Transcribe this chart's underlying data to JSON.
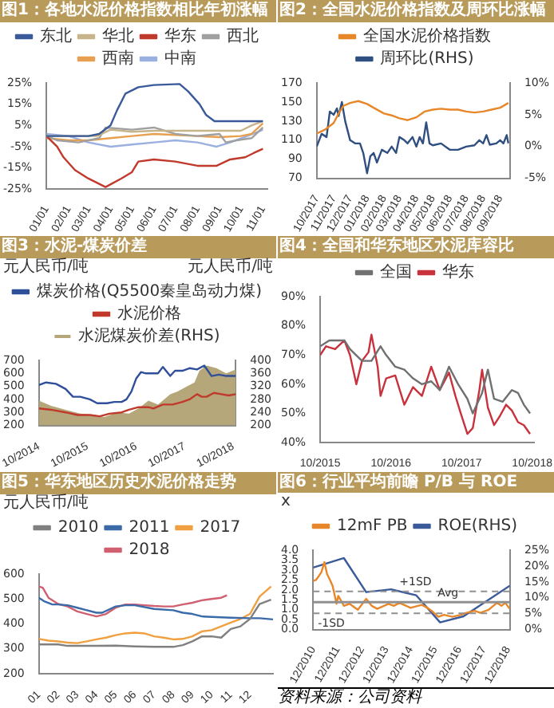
{
  "chart_data": [
    {
      "type": "line",
      "title": "图1：各地水泥价格指数相比年初涨幅",
      "legend": "top",
      "xlim": [
        "--01-01",
        "--11-07"
      ],
      "xticks": [
        {
          "value": "--01-01",
          "label": "01/01"
        },
        {
          "value": "--02-01",
          "label": "02/01"
        },
        {
          "value": "--03-01",
          "label": "03/01"
        },
        {
          "value": "--04-01",
          "label": "04/01"
        },
        {
          "value": "--05-01",
          "label": "05/01"
        },
        {
          "value": "--06-01",
          "label": "06/01"
        },
        {
          "value": "--07-01",
          "label": "07/01"
        },
        {
          "value": "--08-01",
          "label": "08/01"
        },
        {
          "value": "--09-01",
          "label": "09/01"
        },
        {
          "value": "--10-01",
          "label": "10/01"
        },
        {
          "value": "--11-01",
          "label": "11/01"
        }
      ],
      "ylim": [
        -25,
        25
      ],
      "yticks": [
        {
          "value": -25,
          "label": "-25%"
        },
        {
          "value": -15,
          "label": "-15%"
        },
        {
          "value": -5,
          "label": "-5%"
        },
        {
          "value": 5,
          "label": "5%"
        },
        {
          "value": 15,
          "label": "15%"
        },
        {
          "value": 25,
          "label": "25%"
        }
      ],
      "series": [
        {
          "name": "东北",
          "color": "#3a5a9a",
          "x": [
            "--01-01",
            "--02-01",
            "--03-01",
            "--03-16",
            "--04-01",
            "--04-10",
            "--04-22",
            "--05-10",
            "--06-01",
            "--07-07",
            "--07-19",
            "--08-04",
            "--08-13",
            "--08-25",
            "--11-01"
          ],
          "values": [
            0,
            0,
            0,
            1,
            5,
            12,
            20,
            23,
            24,
            24.5,
            21,
            15,
            10,
            7,
            7
          ]
        },
        {
          "name": "华北",
          "color": "#c8b48a",
          "x": [
            "--01-01",
            "--02-01",
            "--03-01",
            "--03-13",
            "--04-01",
            "--05-01",
            "--06-01",
            "--07-01",
            "--08-01",
            "--09-01",
            "--10-01",
            "--10-16",
            "--11-01"
          ],
          "values": [
            0,
            0,
            0,
            0,
            3,
            2,
            2.5,
            2.5,
            2.5,
            2.5,
            2.5,
            5,
            7
          ]
        },
        {
          "name": "华东",
          "color": "#c0392b",
          "x": [
            "--01-01",
            "--01-16",
            "--01-25",
            "--02-10",
            "--03-01",
            "--03-25",
            "--04-16",
            "--05-01",
            "--05-10",
            "--06-01",
            "--07-01",
            "--08-01",
            "--08-28",
            "--09-16",
            "--10-07",
            "--10-19",
            "--11-01"
          ],
          "values": [
            0,
            -5,
            -10,
            -16,
            -20,
            -24,
            -20,
            -17,
            -12,
            -11,
            -12,
            -14,
            -14,
            -11,
            -10,
            -8,
            -6
          ]
        },
        {
          "name": "西北",
          "color": "#a0a0a0",
          "x": [
            "--01-01",
            "--01-16",
            "--02-15",
            "--03-16",
            "--03-25",
            "--05-01",
            "--06-01",
            "--07-01",
            "--08-01",
            "--09-01",
            "--09-10",
            "--09-25",
            "--10-16",
            "--11-01"
          ],
          "values": [
            0,
            -2,
            -3,
            -1,
            4,
            3,
            4,
            1,
            0,
            1,
            -3,
            -2,
            -1,
            4
          ]
        },
        {
          "name": "西南",
          "color": "#e8a050",
          "x": [
            "--01-01",
            "--02-01",
            "--03-01",
            "--04-01",
            "--05-01",
            "--06-01",
            "--07-01",
            "--08-01",
            "--09-01",
            "--10-01",
            "--10-16",
            "--11-01"
          ],
          "values": [
            -1,
            -2,
            -2,
            -1,
            0,
            1,
            0.5,
            0,
            -0.5,
            0,
            1,
            6
          ]
        },
        {
          "name": "中南",
          "color": "#9ab0e0",
          "x": [
            "--01-01",
            "--02-01",
            "--03-01",
            "--04-01",
            "--05-01",
            "--06-01",
            "--07-01",
            "--08-01",
            "--08-28",
            "--09-16",
            "--10-10",
            "--10-25",
            "--11-01"
          ],
          "values": [
            1,
            0,
            -3,
            -5,
            -4,
            -3,
            -2,
            -3,
            -5,
            -3,
            0,
            2,
            3
          ]
        }
      ]
    },
    {
      "type": "line",
      "title": "图2：全国水泥价格指数及周环比涨幅",
      "legend": "top",
      "xlim": [
        "2017-10-01",
        "2018-09-19"
      ],
      "xticks": [
        {
          "value": "2017-10-01",
          "label": "10/2017"
        },
        {
          "value": "2017-11-01",
          "label": "11/2017"
        },
        {
          "value": "2017-12-01",
          "label": "12/2017"
        },
        {
          "value": "2018-01-01",
          "label": "01/2018"
        },
        {
          "value": "2018-02-01",
          "label": "02/2018"
        },
        {
          "value": "2018-03-01",
          "label": "03/2018"
        },
        {
          "value": "2018-04-01",
          "label": "04/2018"
        },
        {
          "value": "2018-05-01",
          "label": "05/2018"
        },
        {
          "value": "2018-06-01",
          "label": "06/2018"
        },
        {
          "value": "2018-07-01",
          "label": "07/2018"
        },
        {
          "value": "2018-08-01",
          "label": "08/2018"
        },
        {
          "value": "2018-09-01",
          "label": "09/2018"
        }
      ],
      "ylim": [
        70,
        170
      ],
      "yticks": [
        70,
        90,
        110,
        130,
        150,
        170
      ],
      "y2lim": [
        -5,
        10
      ],
      "y2ticks": [
        {
          "value": -5,
          "label": "-5%"
        },
        {
          "value": 0,
          "label": "0%"
        },
        {
          "value": 5,
          "label": "5%"
        },
        {
          "value": 10,
          "label": "10%"
        }
      ],
      "series": [
        {
          "name": "全国水泥价格指数",
          "color": "#e8872a",
          "x": [
            "2017-10-01",
            "2017-10-16",
            "2017-11-01",
            "2017-11-10",
            "2017-11-19",
            "2017-12-01",
            "2017-12-16",
            "2018-01-01",
            "2018-01-13",
            "2018-02-01",
            "2018-02-15",
            "2018-03-01",
            "2018-03-16",
            "2018-04-01",
            "2018-04-16",
            "2018-05-01",
            "2018-05-16",
            "2018-06-01",
            "2018-06-16",
            "2018-07-01",
            "2018-07-16",
            "2018-08-01",
            "2018-08-16",
            "2018-09-01",
            "2018-09-16"
          ],
          "values": [
            117,
            121,
            128,
            138,
            146,
            149,
            151,
            148,
            144,
            138,
            136,
            133,
            131,
            134,
            140,
            142,
            143,
            142,
            142,
            140,
            139,
            140,
            142,
            144,
            149
          ]
        },
        {
          "name": "周环比(RHS)",
          "color": "#2f4f80",
          "axis": "y2",
          "x": [
            "2017-10-01",
            "2017-10-10",
            "2017-10-19",
            "2017-10-25",
            "2017-11-01",
            "2017-11-07",
            "2017-11-10",
            "2017-11-16",
            "2017-11-22",
            "2017-12-01",
            "2017-12-10",
            "2017-12-19",
            "2017-12-25",
            "2018-01-01",
            "2018-01-07",
            "2018-01-13",
            "2018-01-19",
            "2018-01-28",
            "2018-02-07",
            "2018-02-15",
            "2018-02-23",
            "2018-03-01",
            "2018-03-10",
            "2018-03-16",
            "2018-03-25",
            "2018-04-01",
            "2018-04-07",
            "2018-04-13",
            "2018-04-19",
            "2018-04-25",
            "2018-05-01",
            "2018-05-16",
            "2018-06-01",
            "2018-06-16",
            "2018-07-01",
            "2018-07-16",
            "2018-07-25",
            "2018-08-01",
            "2018-08-07",
            "2018-08-13",
            "2018-08-25",
            "2018-09-01",
            "2018-09-07",
            "2018-09-13",
            "2018-09-16"
          ],
          "values": [
            0,
            2,
            1.5,
            5.5,
            5,
            6,
            4.8,
            7,
            4,
            1,
            0.5,
            0.5,
            -1,
            -4.2,
            -1.5,
            -1,
            -2.5,
            -0.5,
            -1,
            0,
            -1,
            1.5,
            1,
            0.5,
            1.5,
            0,
            1.5,
            0.5,
            3.8,
            0.5,
            0.2,
            0.5,
            -0.5,
            -0.5,
            0,
            0.2,
            1,
            0.5,
            1.8,
            0.3,
            0.5,
            1,
            0.5,
            1.8,
            0.5
          ]
        }
      ]
    },
    {
      "type": "line",
      "title": "图3：水泥-煤炭价差",
      "legend": "top",
      "ylabel": "元人民币/吨",
      "y2label": "元人民币/吨",
      "xlim": [
        "2014-10-01",
        "2018-10-19"
      ],
      "xticks": [
        {
          "value": "2014-10-01",
          "label": "10/2014"
        },
        {
          "value": "2015-10-01",
          "label": "10/2015"
        },
        {
          "value": "2016-10-01",
          "label": "10/2016"
        },
        {
          "value": "2017-10-01",
          "label": "10/2017"
        },
        {
          "value": "2018-10-01",
          "label": "10/2018"
        }
      ],
      "ylim": [
        200,
        700
      ],
      "yticks": [
        200,
        300,
        400,
        500,
        600,
        700
      ],
      "y2lim": [
        200,
        400
      ],
      "y2ticks": [
        200,
        240,
        280,
        320,
        360,
        400
      ],
      "series": [
        {
          "name": "水泥煤炭价差(RHS)",
          "type": "area",
          "axis": "y2",
          "color": "#b5a77a",
          "x": [
            "2014-10-01",
            "2015-01-01",
            "2015-04-20",
            "2015-08-08",
            "2015-11-24",
            "2016-02-06",
            "2016-05-08",
            "2016-08-08",
            "2016-10-19",
            "2017-01-01",
            "2017-03-14",
            "2017-06-14",
            "2017-08-08",
            "2017-10-19",
            "2017-12-13",
            "2018-01-19",
            "2018-03-14",
            "2018-05-27",
            "2018-08-08",
            "2018-10-19"
          ],
          "values": [
            276,
            260,
            248,
            236,
            232,
            226,
            240,
            236,
            252,
            276,
            264,
            296,
            304,
            320,
            332,
            368,
            384,
            376,
            360,
            372
          ]
        },
        {
          "name": "煤炭价格(Q5500秦皇岛动力煤)",
          "color": "#2f4f9a",
          "x": [
            "2014-10-01",
            "2014-11-24",
            "2015-02-06",
            "2015-04-20",
            "2015-06-14",
            "2015-08-08",
            "2015-10-19",
            "2015-12-13",
            "2016-02-25",
            "2016-04-20",
            "2016-06-14",
            "2016-07-20",
            "2016-08-26",
            "2016-10-01",
            "2016-11-06",
            "2016-12-13",
            "2017-03-14",
            "2017-04-20",
            "2017-06-14",
            "2017-07-20",
            "2017-09-13",
            "2017-11-06",
            "2018-01-01",
            "2018-02-25",
            "2018-04-20",
            "2018-06-14",
            "2018-08-08",
            "2018-10-19"
          ],
          "values": [
            510,
            530,
            520,
            480,
            420,
            420,
            400,
            370,
            370,
            380,
            380,
            400,
            460,
            560,
            610,
            600,
            600,
            650,
            580,
            620,
            620,
            640,
            630,
            660,
            580,
            590,
            580,
            580
          ]
        },
        {
          "name": "水泥价格",
          "color": "#c0392b",
          "x": [
            "2014-10-01",
            "2015-01-01",
            "2015-04-20",
            "2015-07-20",
            "2015-10-19",
            "2016-01-01",
            "2016-03-14",
            "2016-06-14",
            "2016-08-08",
            "2016-10-19",
            "2017-01-01",
            "2017-02-06",
            "2017-04-20",
            "2017-07-02",
            "2017-09-13",
            "2017-11-06",
            "2018-01-01",
            "2018-02-06",
            "2018-03-14",
            "2018-05-08",
            "2018-07-02",
            "2018-08-26",
            "2018-10-19"
          ],
          "values": [
            330,
            320,
            300,
            280,
            280,
            270,
            290,
            300,
            320,
            340,
            340,
            330,
            360,
            360,
            380,
            400,
            440,
            420,
            420,
            450,
            440,
            430,
            440
          ]
        }
      ]
    },
    {
      "type": "line",
      "title": "图4：全国和华东地区水泥库容比",
      "legend": "top",
      "xlim": [
        "2015-10-01",
        "2018-10-12"
      ],
      "xticks": [
        {
          "value": "2015-10-01",
          "label": "10/2015"
        },
        {
          "value": "2016-10-01",
          "label": "10/2016"
        },
        {
          "value": "2017-10-01",
          "label": "10/2017"
        },
        {
          "value": "2018-10-01",
          "label": "10/2018"
        }
      ],
      "ylim": [
        40,
        90
      ],
      "yticks": [
        {
          "value": 40,
          "label": "40%"
        },
        {
          "value": 50,
          "label": "50%"
        },
        {
          "value": 60,
          "label": "60%"
        },
        {
          "value": 70,
          "label": "70%"
        },
        {
          "value": 80,
          "label": "80%"
        },
        {
          "value": 90,
          "label": "90%"
        }
      ],
      "series": [
        {
          "name": "全国",
          "color": "#707070",
          "x": [
            "2015-10-01",
            "2015-11-17",
            "2016-02-03",
            "2016-03-03",
            "2016-05-04",
            "2016-06-22",
            "2016-08-08",
            "2016-09-06",
            "2016-10-23",
            "2016-12-09",
            "2017-01-23",
            "2017-03-10",
            "2017-04-27",
            "2017-06-10",
            "2017-07-28",
            "2017-09-13",
            "2017-10-31",
            "2017-11-28",
            "2018-01-15",
            "2018-02-14",
            "2018-03-18",
            "2018-05-01",
            "2018-06-18",
            "2018-07-20",
            "2018-08-19",
            "2018-09-20"
          ],
          "values": [
            73,
            75,
            75,
            72,
            68,
            68,
            73,
            70,
            66,
            65,
            62,
            60,
            61,
            58,
            66,
            60,
            55,
            50,
            57,
            65,
            55,
            54,
            58,
            57,
            53,
            50
          ]
        },
        {
          "name": "华东",
          "color": "#c8323c",
          "x": [
            "2015-10-01",
            "2015-10-31",
            "2015-12-17",
            "2016-02-03",
            "2016-03-03",
            "2016-04-05",
            "2016-05-04",
            "2016-06-07",
            "2016-06-22",
            "2016-07-24",
            "2016-08-08",
            "2016-09-06",
            "2016-10-23",
            "2016-12-09",
            "2017-01-23",
            "2017-03-10",
            "2017-04-27",
            "2017-06-10",
            "2017-07-28",
            "2017-08-30",
            "2017-09-27",
            "2017-10-31",
            "2017-11-28",
            "2018-01-01",
            "2018-01-15",
            "2018-02-14",
            "2018-03-18",
            "2018-04-16",
            "2018-05-19",
            "2018-06-18",
            "2018-07-20",
            "2018-08-19",
            "2018-09-20"
          ],
          "values": [
            70,
            73,
            72,
            75,
            70,
            60,
            68,
            71,
            77,
            66,
            56,
            62,
            63,
            53,
            59,
            56,
            66,
            58,
            64,
            56,
            50,
            43,
            45,
            58,
            65,
            52,
            46,
            49,
            53,
            51,
            47,
            46,
            43
          ]
        }
      ]
    },
    {
      "type": "line",
      "title": "图5：华东地区历史水泥价格走势",
      "legend": "top",
      "ylabel": "元人民币/吨",
      "xlim": [
        1,
        13.2
      ],
      "xticks": [
        {
          "value": 1,
          "label": "01"
        },
        {
          "value": 2,
          "label": "02"
        },
        {
          "value": 3,
          "label": "03"
        },
        {
          "value": 4,
          "label": "04"
        },
        {
          "value": 5,
          "label": "05"
        },
        {
          "value": 6,
          "label": "06"
        },
        {
          "value": 7,
          "label": "07"
        },
        {
          "value": 8,
          "label": "08"
        },
        {
          "value": 9,
          "label": "09"
        },
        {
          "value": 10,
          "label": "10"
        },
        {
          "value": 11,
          "label": "11"
        },
        {
          "value": 12,
          "label": "12"
        }
      ],
      "ylim": [
        200,
        600
      ],
      "yticks": [
        200,
        300,
        400,
        500,
        600
      ],
      "series": [
        {
          "name": "2010",
          "color": "#808080",
          "x": [
            1,
            2,
            2.5,
            3,
            4,
            5,
            6,
            7,
            8,
            8.5,
            9,
            9.5,
            10,
            10.5,
            11,
            11.5,
            12,
            12.5,
            13.1
          ],
          "values": [
            318,
            318,
            312,
            312,
            312,
            313,
            310,
            308,
            308,
            315,
            330,
            350,
            350,
            345,
            380,
            390,
            420,
            480,
            497
          ]
        },
        {
          "name": "2011",
          "color": "#3a6aa8",
          "x": [
            1,
            1.3,
            1.7,
            2,
            2.5,
            3,
            3.5,
            4,
            4.3,
            5,
            5.5,
            6,
            7,
            8,
            8.5,
            9,
            9.5,
            10,
            11,
            12,
            12.5,
            13.2
          ],
          "values": [
            505,
            490,
            478,
            478,
            475,
            465,
            455,
            445,
            445,
            470,
            475,
            475,
            460,
            455,
            445,
            440,
            430,
            428,
            425,
            423,
            423,
            418
          ]
        },
        {
          "name": "2017",
          "color": "#f0a040",
          "x": [
            1,
            1.5,
            2,
            2.5,
            3,
            3.5,
            4,
            4.5,
            5,
            5.5,
            6,
            6.5,
            7,
            7.5,
            8,
            8.5,
            9,
            9.5,
            10,
            10.5,
            11,
            11.5,
            12,
            12.5,
            13.1
          ],
          "values": [
            340,
            333,
            330,
            325,
            323,
            330,
            338,
            345,
            355,
            362,
            365,
            362,
            350,
            345,
            338,
            340,
            350,
            370,
            375,
            390,
            405,
            420,
            440,
            510,
            550
          ]
        },
        {
          "name": "2018",
          "color": "#d06070",
          "x": [
            1,
            1.2,
            1.5,
            2,
            2.5,
            3,
            3.5,
            4,
            4.5,
            5,
            5.5,
            6,
            6.5,
            7,
            7.5,
            8,
            8.5,
            9,
            9.5,
            10,
            10.5,
            10.8
          ],
          "values": [
            550,
            545,
            505,
            480,
            470,
            450,
            440,
            430,
            440,
            465,
            478,
            478,
            475,
            472,
            470,
            470,
            478,
            485,
            495,
            500,
            505,
            515
          ]
        }
      ]
    },
    {
      "type": "line",
      "title": "图6：行业平均前瞻 P/B 与 ROE",
      "legend": "top",
      "ylabel": "x",
      "xlim": [
        "2010-12-01",
        "2019-01-01"
      ],
      "xticks": [
        {
          "value": "2010-12-01",
          "label": "12/2010"
        },
        {
          "value": "2011-12-01",
          "label": "12/2011"
        },
        {
          "value": "2012-12-01",
          "label": "12/2012"
        },
        {
          "value": "2013-12-01",
          "label": "12/2013"
        },
        {
          "value": "2014-12-01",
          "label": "12/2014"
        },
        {
          "value": "2015-12-01",
          "label": "12/2015"
        },
        {
          "value": "2016-12-01",
          "label": "12/2016"
        },
        {
          "value": "2017-12-01",
          "label": "12/2017"
        },
        {
          "value": "2018-12-01",
          "label": "12/2018"
        }
      ],
      "ylim": [
        0,
        4
      ],
      "yticks": [
        {
          "value": 0,
          "label": "0.0"
        },
        {
          "value": 0.5,
          "label": "0.5"
        },
        {
          "value": 1,
          "label": "1.0"
        },
        {
          "value": 1.5,
          "label": "1.5"
        },
        {
          "value": 2,
          "label": "2.0"
        },
        {
          "value": 2.5,
          "label": "2.5"
        },
        {
          "value": 3,
          "label": "3.0"
        },
        {
          "value": 3.5,
          "label": "3.5"
        },
        {
          "value": 4,
          "label": "4.0"
        }
      ],
      "y2lim": [
        0,
        25
      ],
      "y2ticks": [
        {
          "value": 0,
          "label": "0%"
        },
        {
          "value": 5,
          "label": "5%"
        },
        {
          "value": 10,
          "label": "10%"
        },
        {
          "value": 15,
          "label": "15%"
        },
        {
          "value": 20,
          "label": "20%"
        },
        {
          "value": 25,
          "label": "25%"
        }
      ],
      "ref_lines": [
        {
          "axis": "y",
          "value": 1.93,
          "label": "+1SD",
          "color": "#909090",
          "line_style": "dashed"
        },
        {
          "axis": "y",
          "value": 1.38,
          "label": "Avg",
          "color": "#909090",
          "line_style": "solid"
        },
        {
          "axis": "y",
          "value": 0.82,
          "label": "-1SD",
          "color": "#909090",
          "line_style": "dashed"
        }
      ],
      "annotations": [
        "资料来源：公司资料"
      ],
      "series": [
        {
          "name": "12mF PB",
          "color": "#e8872a",
          "x": [
            "2010-12-01",
            "2011-01-12",
            "2011-02-25",
            "2011-04-05",
            "2011-05-19",
            "2011-06-28",
            "2011-08-11",
            "2011-09-20",
            "2011-11-17",
            "2011-12-13",
            "2012-03-07",
            "2012-05-30",
            "2012-10-01",
            "2013-02-03",
            "2013-04-27",
            "2013-07-20",
            "2014-01-05",
            "2014-03-25",
            "2014-06-18",
            "2014-12-01",
            "2015-05-19",
            "2015-08-11",
            "2015-10-31",
            "2016-01-23",
            "2016-04-16",
            "2016-08-19",
            "2016-12-24",
            "2017-03-18",
            "2017-07-20",
            "2017-10-12",
            "2018-02-14",
            "2018-06-18",
            "2018-08-26",
            "2018-10-23",
            "2018-12-28"
          ],
          "values": [
            2.45,
            2.5,
            2.7,
            2.9,
            3.4,
            2.8,
            2.5,
            2.2,
            1.3,
            1.7,
            1.2,
            1.3,
            1.0,
            1.55,
            1.2,
            1.05,
            1.3,
            1.2,
            1.35,
            1.1,
            1.25,
            1.1,
            0.9,
            0.65,
            0.75,
            0.65,
            0.75,
            0.85,
            0.95,
            0.85,
            1.0,
            1.35,
            1.2,
            1.35,
            1.05
          ]
        },
        {
          "name": "ROE(RHS)",
          "color": "#3a5a9a",
          "axis": "y2",
          "x": [
            "2010-12-01",
            "2012-03-07",
            "2013-02-03",
            "2014-02-14",
            "2015-02-25",
            "2016-02-17",
            "2017-02-03",
            "2018-12-28"
          ],
          "values": [
            19.5,
            22.5,
            11.8,
            12.7,
            10.8,
            2.3,
            4.2,
            13.8
          ]
        }
      ]
    }
  ]
}
